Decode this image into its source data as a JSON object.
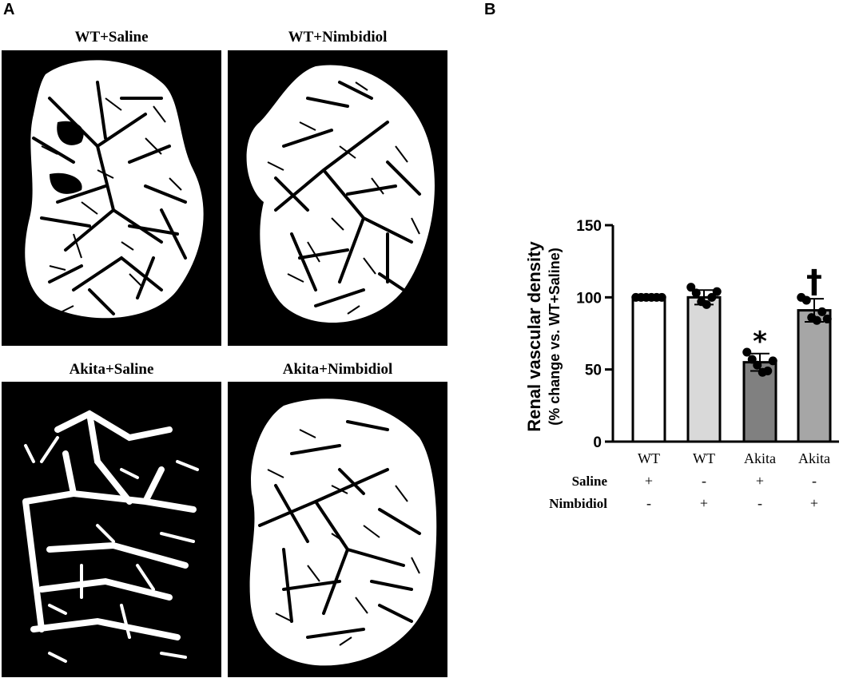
{
  "panel_labels": {
    "a": "A",
    "b": "B"
  },
  "images": [
    {
      "title": "WT+Saline"
    },
    {
      "title": "WT+Nimbidiol"
    },
    {
      "title": "Akita+Saline"
    },
    {
      "title": "Akita+Nimbidiol"
    }
  ],
  "chart_data": {
    "type": "bar",
    "categories": [
      "WT",
      "WT",
      "Akita",
      "Akita"
    ],
    "values": [
      100,
      100,
      55,
      91
    ],
    "errors": [
      0,
      5,
      6,
      8
    ],
    "points": [
      [
        100,
        100,
        100,
        100,
        100,
        100
      ],
      [
        107,
        103,
        97,
        95,
        100,
        104
      ],
      [
        62,
        57,
        53,
        48,
        49,
        56
      ],
      [
        100,
        98,
        86,
        84,
        90,
        85
      ]
    ],
    "bar_colors": [
      "#ffffff",
      "#d9d9d9",
      "#808080",
      "#a6a6a6"
    ],
    "significance": [
      "",
      "",
      "*",
      "†"
    ],
    "ylabel": "Renal vascular density",
    "ylabel2": "(% change vs. WT+Saline)",
    "ylim": [
      0,
      150
    ],
    "yticks": [
      0,
      50,
      100,
      150
    ],
    "treatment_rows": [
      {
        "label": "Saline",
        "marks": [
          "+",
          "-",
          "+",
          "-"
        ]
      },
      {
        "label": "Nimbidiol",
        "marks": [
          "-",
          "+",
          "-",
          "+"
        ]
      }
    ],
    "grid": false,
    "legend": "none"
  }
}
